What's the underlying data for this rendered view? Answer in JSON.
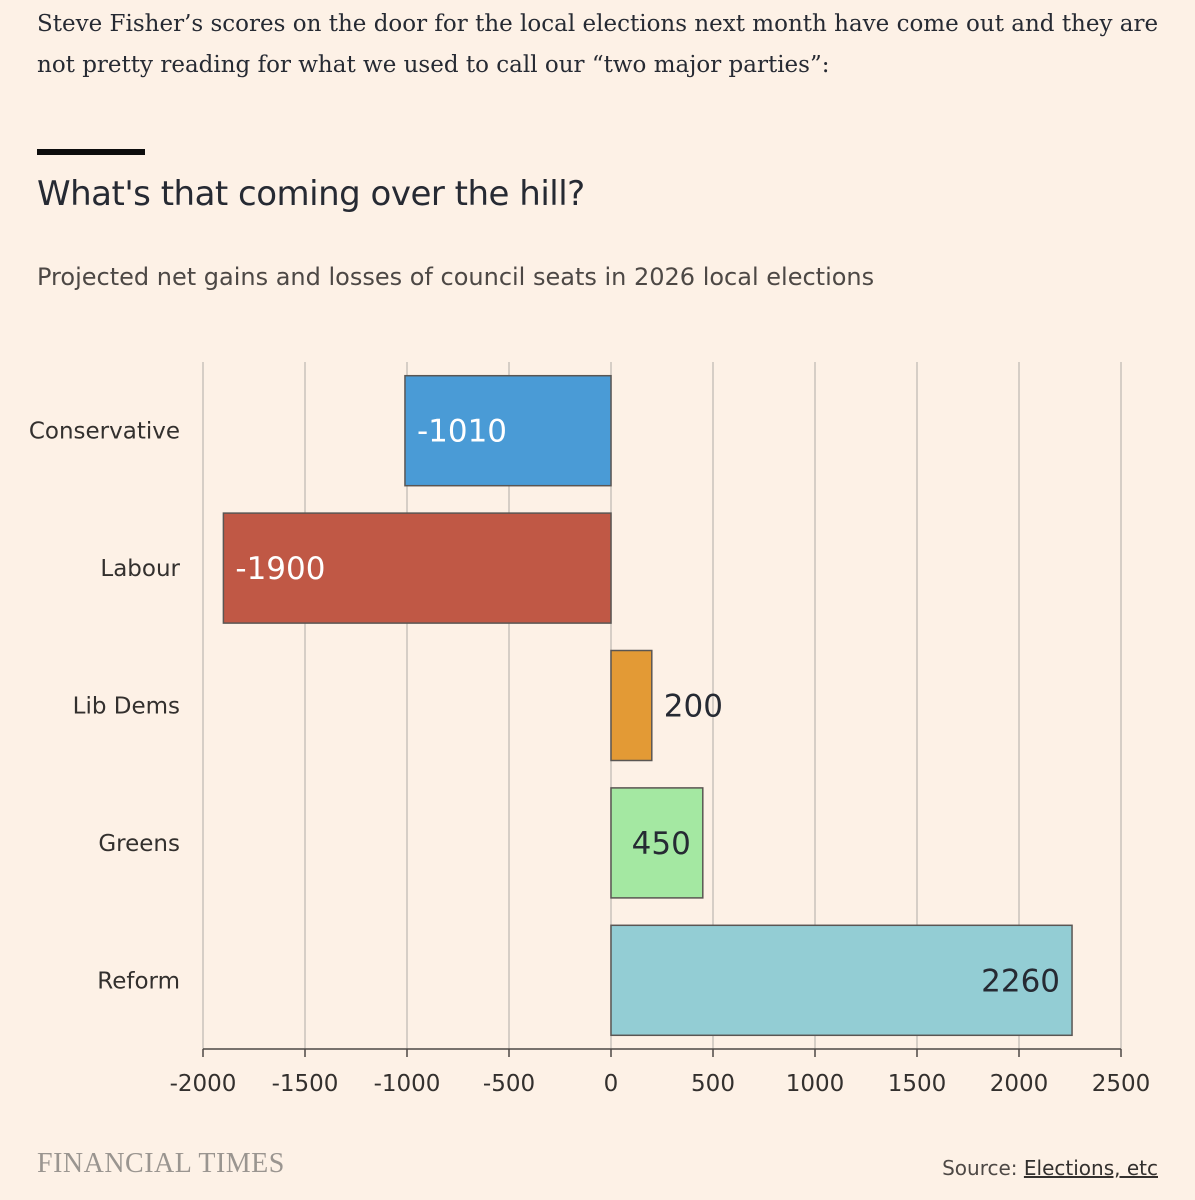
{
  "intro_text": "Steve Fisher’s scores on the door for the local elections next month have come out and they are not pretty reading for what we used to call our “two major parties”:",
  "footer": {
    "brand": "FINANCIAL TIMES",
    "source_prefix": "Source: ",
    "source_link": "Elections, etc"
  },
  "colors": {
    "background": "#FDF1E6",
    "grid": "#c9c2bb",
    "bar_stroke": "#5a5653"
  },
  "chart_data": {
    "type": "bar",
    "orientation": "horizontal",
    "title": "What's that coming over the hill?",
    "subtitle": "Projected net gains and losses of council seats in 2026 local elections",
    "categories": [
      "Conservative",
      "Labour",
      "Lib Dems",
      "Greens",
      "Reform"
    ],
    "values": [
      -1010,
      -1900,
      200,
      450,
      2260
    ],
    "data_labels": [
      "-1010",
      "-1900",
      "200",
      "450",
      "2260"
    ],
    "bar_colors": [
      "#4A9BD6",
      "#C05845",
      "#E39A35",
      "#A4E8A2",
      "#93CDD4"
    ],
    "label_colors": [
      "#ffffff",
      "#ffffff",
      "#262a33",
      "#262a33",
      "#262a33"
    ],
    "xlim": [
      -2000,
      2500
    ],
    "xticks": [
      -2000,
      -1500,
      -1000,
      -500,
      0,
      500,
      1000,
      1500,
      2000,
      2500
    ],
    "xtick_labels": [
      "-2000",
      "-1500",
      "-1000",
      "-500",
      "0",
      "500",
      "1000",
      "1500",
      "2000",
      "2500"
    ],
    "grid": true,
    "xlabel": "",
    "ylabel": ""
  }
}
